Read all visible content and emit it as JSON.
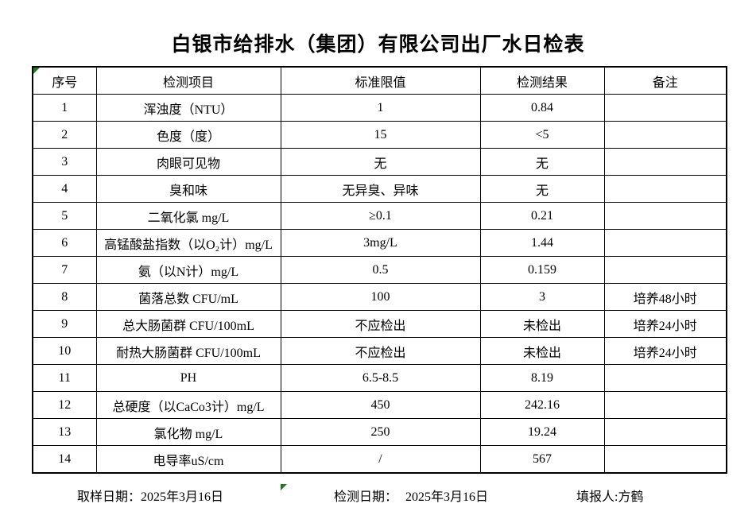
{
  "title": "白银市给排水（集团）有限公司出厂水日检表",
  "table": {
    "headers": [
      "序号",
      "检测项目",
      "标准限值",
      "检测结果",
      "备注"
    ],
    "rows": [
      [
        "1",
        "浑浊度（NTU）",
        "1",
        "0.84",
        ""
      ],
      [
        "2",
        "色度（度）",
        "15",
        "<5",
        ""
      ],
      [
        "3",
        "肉眼可见物",
        "无",
        "无",
        ""
      ],
      [
        "4",
        "臭和味",
        "无异臭、异味",
        "无",
        ""
      ],
      [
        "5",
        "二氧化氯 mg/L",
        "≥0.1",
        "0.21",
        ""
      ],
      [
        "6",
        "高锰酸盐指数（以O₂计）mg/L",
        "3mg/L",
        "1.44",
        ""
      ],
      [
        "7",
        "氨（以N计）mg/L",
        "0.5",
        "0.159",
        ""
      ],
      [
        "8",
        "菌落总数 CFU/mL",
        "100",
        "3",
        "培养48小时"
      ],
      [
        "9",
        "总大肠菌群 CFU/100mL",
        "不应检出",
        "未检出",
        "培养24小时"
      ],
      [
        "10",
        "耐热大肠菌群 CFU/100mL",
        "不应检出",
        "未检出",
        "培养24小时"
      ],
      [
        "11",
        "PH",
        "6.5-8.5",
        "8.19",
        ""
      ],
      [
        "12",
        "总硬度（以CaCo3计）mg/L",
        "450",
        "242.16",
        ""
      ],
      [
        "13",
        "氯化物 mg/L",
        "250",
        "19.24",
        ""
      ],
      [
        "14",
        "电导率uS/cm",
        "/",
        "567",
        ""
      ]
    ]
  },
  "footer": {
    "sampling": {
      "label": "取样日期：",
      "value": "2025年3月16日"
    },
    "testing": {
      "label": "检测日期：",
      "value": "2025年3月16日"
    },
    "reporter": {
      "label": "填报人:",
      "value": "方鹤"
    }
  },
  "colors": {
    "cell_marker_green": "#1f7a1f",
    "table_border": "#000000",
    "background": "#ffffff"
  }
}
